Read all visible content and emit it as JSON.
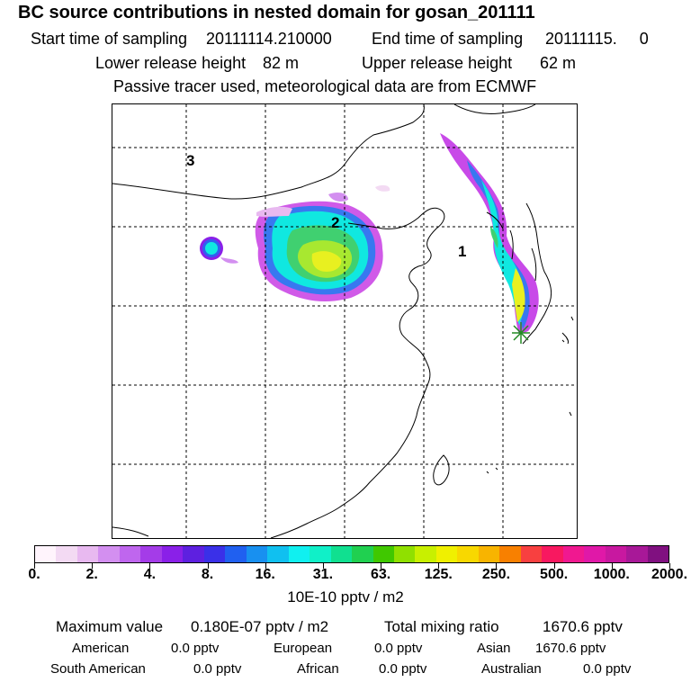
{
  "header": {
    "title": "BC  source contributions in nested domain for gosan_201111",
    "start_label": "Start time of sampling",
    "start_value": "20111114.210000",
    "end_label": "End time of sampling",
    "end_value": "20111115.     0",
    "lower_label": "Lower release height",
    "lower_value": "82 m",
    "upper_label": "Upper release height",
    "upper_value": "62 m",
    "note": "Passive tracer used, meteorological data are from ECMWF"
  },
  "map": {
    "grid_labels": [
      "1",
      "2",
      "3"
    ],
    "receptor_icon": "asterisk-star-icon"
  },
  "colorbar": {
    "colors": [
      "#fff4fc",
      "#f3daf3",
      "#e8b9f0",
      "#d38ff0",
      "#bf66ee",
      "#a43ce8",
      "#8a20e8",
      "#5e20e0",
      "#3a30e8",
      "#2060f0",
      "#1890f0",
      "#10c0f0",
      "#10f0f0",
      "#10f0c8",
      "#10e090",
      "#20d050",
      "#40c800",
      "#90e000",
      "#c8f000",
      "#f0f000",
      "#f8d800",
      "#f8b400",
      "#f88000",
      "#f84040",
      "#f81860",
      "#f01890",
      "#e018a8",
      "#c818a0",
      "#a81898",
      "#801080"
    ],
    "labels": [
      "0.",
      "2.",
      "4.",
      "8.",
      "16.",
      "31.",
      "63.",
      "125.",
      "250.",
      "500.",
      "1000.",
      "2000."
    ],
    "unit": "10E-10 pptv / m2"
  },
  "summary": {
    "max_label": "Maximum value",
    "max_value": "0.180E-07 pptv / m2",
    "total_label": "Total mixing ratio",
    "total_value": "1670.6 pptv",
    "regions": [
      {
        "name": "American",
        "value": "0.0 pptv"
      },
      {
        "name": "European",
        "value": "0.0 pptv"
      },
      {
        "name": "Asian",
        "value": "1670.6 pptv"
      },
      {
        "name": "South American",
        "value": "0.0 pptv"
      },
      {
        "name": "African",
        "value": "0.0 pptv"
      },
      {
        "name": "Australian",
        "value": "0.0 pptv"
      }
    ]
  }
}
